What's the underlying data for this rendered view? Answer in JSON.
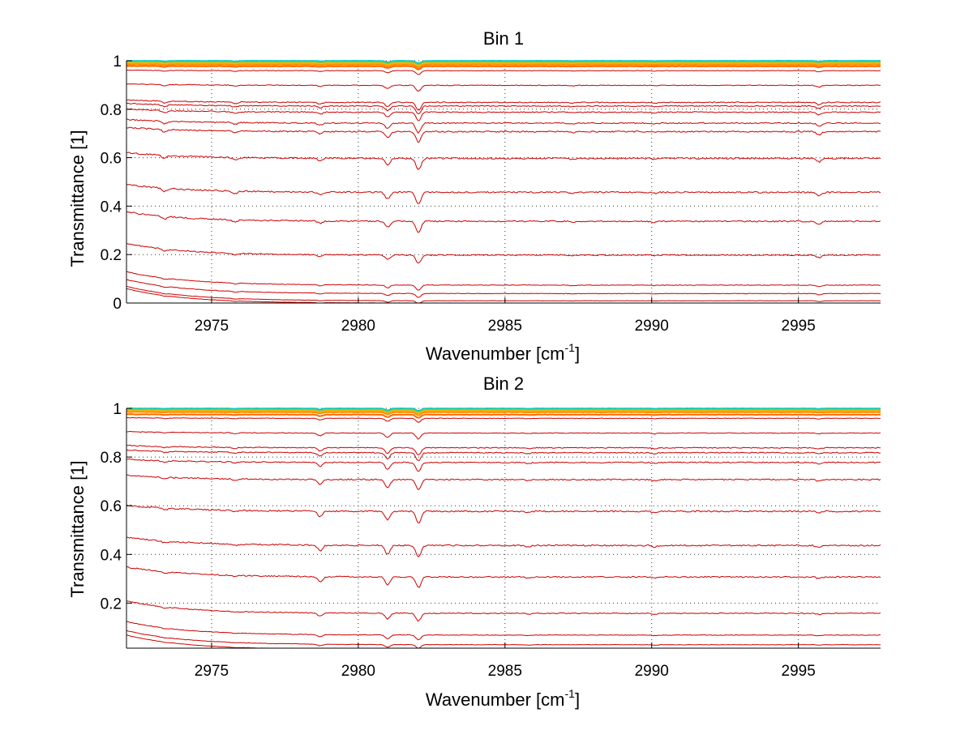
{
  "chart_data": [
    {
      "type": "line",
      "title": "Bin 1",
      "xlabel": "Wavenumber [cm",
      "xlabel_sup": "-1",
      "xlabel_end": "]",
      "ylabel": "Transmittance [1]",
      "xlim": [
        2972.1,
        2997.8
      ],
      "ylim": [
        0,
        1
      ],
      "xticks": [
        "2975",
        "2980",
        "2985",
        "2990",
        "2995"
      ],
      "yticks": [
        "0",
        "0.2",
        "0.4",
        "0.6",
        "0.8",
        "1"
      ],
      "grid": true,
      "series_color": "#cc0000",
      "top_colors": [
        "#00cccc",
        "#8bc34a",
        "#ffb300",
        "#ff8c00",
        "#ff6a00",
        "#e64a00"
      ],
      "baselines": [
        1.0,
        0.995,
        0.99,
        0.985,
        0.978,
        0.96,
        0.9,
        0.83,
        0.815,
        0.79,
        0.745,
        0.71,
        0.6,
        0.46,
        0.34,
        0.2,
        0.075,
        0.04,
        0.01,
        0.0
      ],
      "absorption_lines": [
        {
          "x": 2973.4,
          "depth": 0.25
        },
        {
          "x": 2975.8,
          "depth": 0.2
        },
        {
          "x": 2978.7,
          "depth": 0.22
        },
        {
          "x": 2981.0,
          "depth": 0.55
        },
        {
          "x": 2982.05,
          "depth": 1.0
        },
        {
          "x": 2987.3,
          "depth": 0.08
        },
        {
          "x": 2990.1,
          "depth": 0.08
        },
        {
          "x": 2995.7,
          "depth": 0.3
        }
      ]
    },
    {
      "type": "line",
      "title": "Bin 2",
      "xlabel": "Wavenumber [cm",
      "xlabel_sup": "-1",
      "xlabel_end": "]",
      "ylabel": "Transmittance [1]",
      "xlim": [
        2972.1,
        2997.8
      ],
      "ylim": [
        0,
        1
      ],
      "xticks": [
        "2975",
        "2980",
        "2985",
        "2990",
        "2995"
      ],
      "yticks": [
        "0.2",
        "0.4",
        "0.6",
        "0.8",
        "1"
      ],
      "grid": true,
      "series_color": "#cc0000",
      "top_colors": [
        "#00cccc",
        "#8bc34a",
        "#ffb300",
        "#ff8c00",
        "#ff6a00",
        "#e64a00"
      ],
      "baselines": [
        1.0,
        0.995,
        0.99,
        0.985,
        0.975,
        0.96,
        0.9,
        0.84,
        0.82,
        0.78,
        0.71,
        0.58,
        0.44,
        0.31,
        0.16,
        0.07,
        0.03,
        0.01
      ],
      "absorption_lines": [
        {
          "x": 2973.4,
          "depth": 0.15
        },
        {
          "x": 2975.8,
          "depth": 0.12
        },
        {
          "x": 2978.7,
          "depth": 0.45
        },
        {
          "x": 2981.0,
          "depth": 0.75
        },
        {
          "x": 2982.05,
          "depth": 1.0
        },
        {
          "x": 2985.8,
          "depth": 0.12
        },
        {
          "x": 2990.1,
          "depth": 0.12
        },
        {
          "x": 2995.7,
          "depth": 0.15
        }
      ]
    }
  ]
}
